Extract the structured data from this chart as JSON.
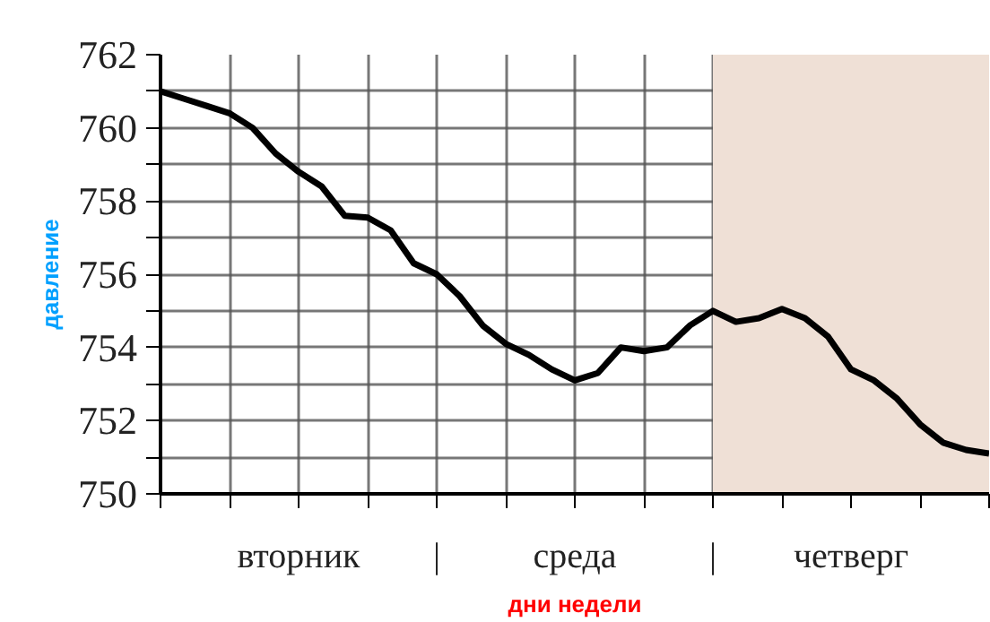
{
  "chart_data": {
    "type": "line",
    "xlabel": "дни недели",
    "ylabel": "давление",
    "categories": [
      null,
      null,
      null,
      null,
      null,
      null,
      "вторник",
      null,
      null,
      null,
      null,
      null,
      "|",
      null,
      null,
      null,
      null,
      null,
      "среда",
      null,
      null,
      null,
      null,
      null,
      "|",
      null,
      null,
      null,
      null,
      null,
      "четверг",
      null,
      null,
      null,
      null,
      null,
      null
    ],
    "series": [
      {
        "color": "#000000",
        "values": [
          761.0,
          760.8,
          760.6,
          760.4,
          760.0,
          759.3,
          758.8,
          758.4,
          757.6,
          757.55,
          757.2,
          756.3,
          756.0,
          755.4,
          754.6,
          754.1,
          753.8,
          753.4,
          753.1,
          753.3,
          754.0,
          753.9,
          754.0,
          754.6,
          755.0,
          754.7,
          754.8,
          755.05,
          754.8,
          754.3,
          753.4,
          753.1,
          752.6,
          751.9,
          751.4,
          751.2,
          751.1
        ]
      }
    ],
    "ylim": [
      750,
      762
    ],
    "yticks": [
      750,
      {
        "value": 751,
        "label": null
      },
      752,
      {
        "value": 753,
        "label": null
      },
      754,
      {
        "value": 755,
        "label": null
      },
      756,
      {
        "value": 757,
        "label": null
      },
      758,
      {
        "value": 759,
        "label": null
      },
      760,
      {
        "value": 761,
        "label": null
      },
      762
    ],
    "grid": true,
    "marker": "none",
    "line_style": "solid"
  }
}
